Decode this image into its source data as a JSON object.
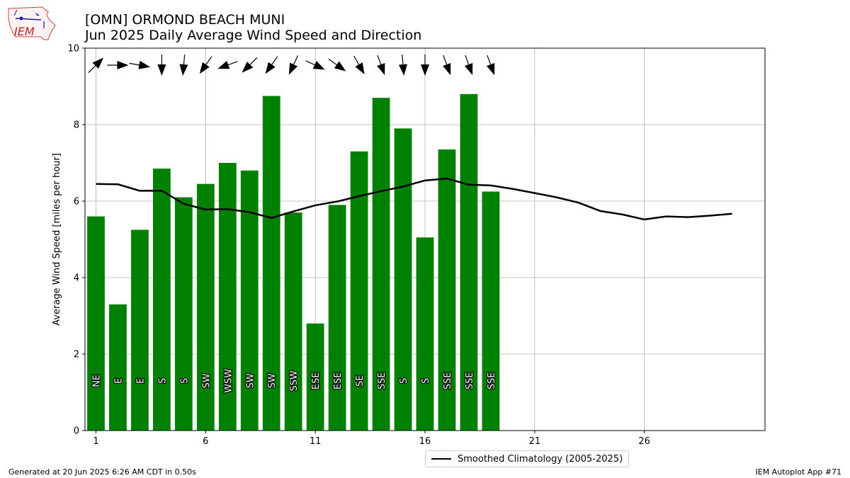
{
  "logo": {
    "text": "IEM"
  },
  "title": {
    "line1": "[OMN] ORMOND BEACH MUNI",
    "line2": "Jun 2025 Daily Average Wind Speed and Direction"
  },
  "footer": {
    "left": "Generated at 20 Jun 2025 6:26 AM CDT in 0.50s",
    "right": "IEM Autoplot App #71"
  },
  "colors": {
    "bar": "#008000",
    "climo": "#000000",
    "grid": "#b0b0b0"
  },
  "chart_data": {
    "type": "bar",
    "ylabel": "Average Wind Speed [miles per hour]",
    "xlabel": "",
    "ylim": [
      0,
      10
    ],
    "xlim": [
      0.5,
      31.5
    ],
    "yticks": [
      0,
      2,
      4,
      6,
      8,
      10
    ],
    "xticks": [
      1,
      6,
      11,
      16,
      21,
      26
    ],
    "grid": true,
    "legend_placement": "bottom-center",
    "series": [
      {
        "kind": "bar",
        "days": [
          1,
          2,
          3,
          4,
          5,
          6,
          7,
          8,
          9,
          10,
          11,
          12,
          13,
          14,
          15,
          16,
          17,
          18,
          19
        ],
        "values": [
          5.6,
          3.3,
          5.25,
          6.85,
          6.1,
          6.45,
          7.0,
          6.8,
          8.75,
          5.7,
          2.8,
          5.9,
          7.3,
          8.7,
          7.9,
          5.05,
          7.35,
          8.8,
          6.25
        ],
        "direction_labels": [
          "NE",
          "E",
          "E",
          "S",
          "S",
          "SW",
          "WSW",
          "SW",
          "SW",
          "SSW",
          "ESE",
          "ESE",
          "SE",
          "SSE",
          "S",
          "S",
          "SSE",
          "SSE",
          "SSE"
        ],
        "arrow_direction_deg": [
          45,
          90,
          100,
          180,
          185,
          215,
          250,
          225,
          215,
          205,
          115,
          125,
          150,
          160,
          175,
          180,
          160,
          160,
          160
        ]
      },
      {
        "kind": "line",
        "name": "Smoothed Climatology (2005-2025)",
        "days": [
          1,
          2,
          3,
          4,
          5,
          6,
          7,
          8,
          9,
          10,
          11,
          12,
          13,
          14,
          15,
          16,
          17,
          18,
          19,
          20,
          21,
          22,
          23,
          24,
          25,
          26,
          27,
          28,
          29,
          30
        ],
        "values": [
          6.45,
          6.44,
          6.27,
          6.27,
          5.93,
          5.78,
          5.79,
          5.71,
          5.56,
          5.73,
          5.89,
          5.99,
          6.13,
          6.26,
          6.38,
          6.54,
          6.59,
          6.43,
          6.41,
          6.32,
          6.21,
          6.1,
          5.96,
          5.74,
          5.65,
          5.52,
          5.6,
          5.58,
          5.62,
          5.67
        ]
      }
    ]
  }
}
